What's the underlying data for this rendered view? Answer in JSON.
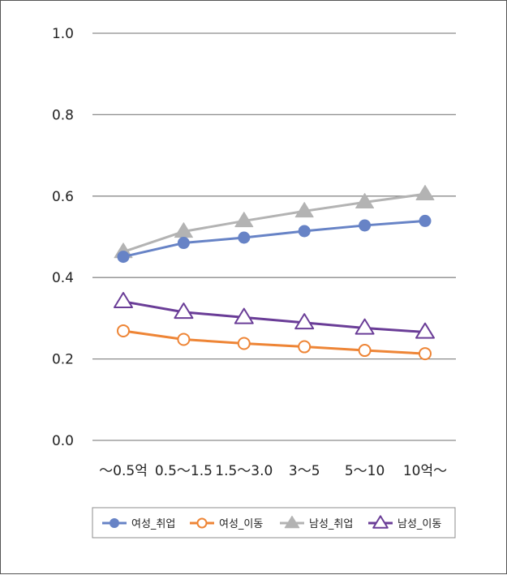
{
  "chart_data": {
    "type": "line",
    "categories": [
      "～0.5억",
      "0.5～1.5",
      "1.5～3.0",
      "3～5",
      "5～10",
      "10억～"
    ],
    "ylim": [
      0,
      1.0
    ],
    "yticks": [
      "0.0",
      "0.2",
      "0.4",
      "0.6",
      "0.8",
      "1.0"
    ],
    "ytick_values": [
      0,
      0.2,
      0.4,
      0.6,
      0.8,
      1.0
    ],
    "grid": true,
    "legend_position": "bottom",
    "series": [
      {
        "name": "여성_취업",
        "color": "#6783c6",
        "marker": "filled-circle",
        "values": [
          0.451,
          0.485,
          0.498,
          0.514,
          0.528,
          0.539
        ]
      },
      {
        "name": "여성_이동",
        "color": "#ee8536",
        "marker": "open-circle",
        "values": [
          0.269,
          0.248,
          0.238,
          0.23,
          0.221,
          0.213
        ]
      },
      {
        "name": "남성_취업",
        "color": "#b3b3b3",
        "marker": "filled-triangle",
        "values": [
          0.463,
          0.513,
          0.539,
          0.563,
          0.585,
          0.605
        ]
      },
      {
        "name": "남성_이동",
        "color": "#6a3d97",
        "marker": "open-triangle",
        "values": [
          0.341,
          0.315,
          0.302,
          0.289,
          0.276,
          0.266
        ]
      }
    ]
  }
}
